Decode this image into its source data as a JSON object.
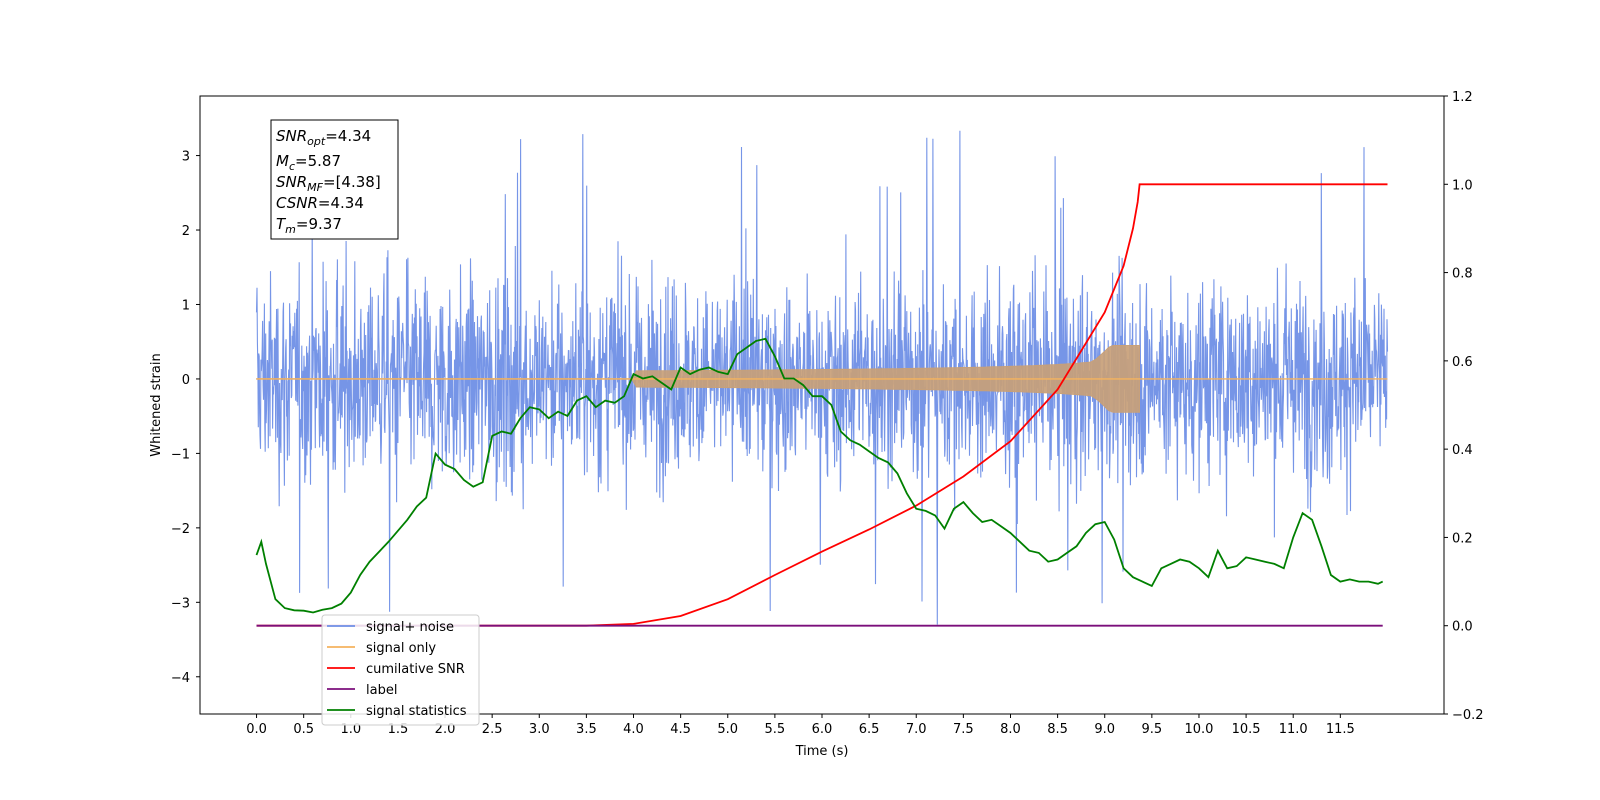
{
  "chart_data": {
    "type": "line",
    "title": "",
    "xlabel": "Time (s)",
    "ylabel": "Whitened strain",
    "y2label": "",
    "xlim": [
      -0.6,
      12.6
    ],
    "ylim": [
      -4.5,
      3.8
    ],
    "y2lim": [
      -0.2,
      1.2
    ],
    "xticks": [
      "0.0",
      "0.5",
      "1.0",
      "1.5",
      "2.0",
      "2.5",
      "3.0",
      "3.5",
      "4.0",
      "4.5",
      "5.0",
      "5.5",
      "6.0",
      "6.5",
      "7.0",
      "7.5",
      "8.0",
      "8.5",
      "9.0",
      "9.5",
      "10.0",
      "10.5",
      "11.0",
      "11.5"
    ],
    "yticks": [
      "3",
      "2",
      "1",
      "0",
      "−1",
      "−2",
      "−3",
      "−4"
    ],
    "y2ticks": [
      "1.2",
      "1.0",
      "0.8",
      "0.6",
      "0.4",
      "0.2",
      "0.0",
      "−0.2"
    ],
    "grid": false,
    "legend_position": "lower-left",
    "annotation": {
      "snr_opt": {
        "base": "SNR",
        "sub": "opt",
        "value": "=4.34"
      },
      "mc": {
        "base": "M",
        "sub": "c",
        "value": "=5.87"
      },
      "snr_mf": {
        "base": "SNR",
        "sub": "MF",
        "value": "=[4.38]"
      },
      "csnr": {
        "base": "CSNR",
        "value": "=4.34"
      },
      "tm": {
        "base": "T",
        "sub": "m",
        "value": "=9.37"
      }
    },
    "series": [
      {
        "name": "signal+ noise",
        "axis": "left",
        "color": "#6f8fe6",
        "kind": "noise",
        "amplitude_range": [
          -3.8,
          3.35
        ],
        "x_range": [
          0.0,
          12.0
        ]
      },
      {
        "name": "signal only",
        "axis": "left",
        "color": "#c8a078",
        "kind": "chirp",
        "x_range": [
          0.0,
          9.37
        ],
        "peak_amplitude": 0.45
      },
      {
        "name": "cumilative SNR",
        "axis": "right",
        "color": "#ff0000",
        "x": [
          0,
          3.3,
          3.5,
          4.0,
          4.5,
          5.0,
          5.5,
          6.0,
          6.5,
          7.0,
          7.5,
          8.0,
          8.5,
          9.0,
          9.2,
          9.3,
          9.35,
          9.37,
          12.0
        ],
        "y": [
          0,
          0,
          0.0,
          0.004,
          0.022,
          0.06,
          0.115,
          0.168,
          0.218,
          0.272,
          0.338,
          0.418,
          0.535,
          0.71,
          0.815,
          0.9,
          0.96,
          1.0,
          1.0
        ]
      },
      {
        "name": "label",
        "axis": "right",
        "color": "#7b0f7b",
        "x": [
          0.0,
          11.95
        ],
        "y": [
          0.0,
          0.0
        ]
      },
      {
        "name": "signal statistics",
        "axis": "right",
        "color": "#008000",
        "x": [
          0.0,
          0.05,
          0.1,
          0.2,
          0.3,
          0.4,
          0.5,
          0.6,
          0.7,
          0.8,
          0.9,
          1.0,
          1.1,
          1.2,
          1.4,
          1.6,
          1.7,
          1.8,
          1.9,
          2.0,
          2.1,
          2.2,
          2.3,
          2.4,
          2.5,
          2.6,
          2.7,
          2.8,
          2.9,
          3.0,
          3.1,
          3.2,
          3.3,
          3.4,
          3.5,
          3.6,
          3.7,
          3.8,
          3.9,
          4.0,
          4.1,
          4.2,
          4.3,
          4.4,
          4.5,
          4.6,
          4.7,
          4.8,
          4.9,
          5.0,
          5.1,
          5.2,
          5.3,
          5.4,
          5.5,
          5.6,
          5.7,
          5.8,
          5.9,
          6.0,
          6.1,
          6.2,
          6.3,
          6.4,
          6.5,
          6.6,
          6.7,
          6.8,
          6.9,
          7.0,
          7.1,
          7.2,
          7.3,
          7.4,
          7.5,
          7.6,
          7.7,
          7.8,
          7.9,
          8.0,
          8.1,
          8.2,
          8.3,
          8.4,
          8.5,
          8.6,
          8.7,
          8.8,
          8.9,
          9.0,
          9.1,
          9.2,
          9.3,
          9.4,
          9.5,
          9.6,
          9.7,
          9.8,
          9.9,
          10.0,
          10.1,
          10.2,
          10.3,
          10.4,
          10.5,
          10.6,
          10.7,
          10.8,
          10.9,
          11.0,
          11.1,
          11.2,
          11.3,
          11.4,
          11.5,
          11.6,
          11.7,
          11.8,
          11.9,
          11.95
        ],
        "y": [
          0.16,
          0.19,
          0.14,
          0.06,
          0.04,
          0.035,
          0.034,
          0.03,
          0.036,
          0.04,
          0.05,
          0.075,
          0.115,
          0.145,
          0.19,
          0.24,
          0.27,
          0.29,
          0.39,
          0.365,
          0.355,
          0.33,
          0.315,
          0.325,
          0.43,
          0.44,
          0.435,
          0.47,
          0.495,
          0.49,
          0.47,
          0.485,
          0.475,
          0.51,
          0.52,
          0.495,
          0.51,
          0.505,
          0.52,
          0.57,
          0.56,
          0.565,
          0.55,
          0.535,
          0.585,
          0.57,
          0.58,
          0.585,
          0.575,
          0.57,
          0.615,
          0.63,
          0.645,
          0.65,
          0.61,
          0.56,
          0.56,
          0.545,
          0.52,
          0.52,
          0.5,
          0.44,
          0.42,
          0.41,
          0.395,
          0.38,
          0.37,
          0.345,
          0.3,
          0.265,
          0.26,
          0.25,
          0.22,
          0.265,
          0.28,
          0.255,
          0.235,
          0.24,
          0.225,
          0.21,
          0.19,
          0.17,
          0.165,
          0.145,
          0.15,
          0.165,
          0.18,
          0.21,
          0.23,
          0.235,
          0.195,
          0.13,
          0.11,
          0.1,
          0.09,
          0.13,
          0.14,
          0.15,
          0.145,
          0.13,
          0.11,
          0.17,
          0.13,
          0.135,
          0.155,
          0.15,
          0.145,
          0.14,
          0.13,
          0.2,
          0.255,
          0.24,
          0.18,
          0.115,
          0.1,
          0.105,
          0.1,
          0.1,
          0.095,
          0.1
        ]
      }
    ]
  }
}
